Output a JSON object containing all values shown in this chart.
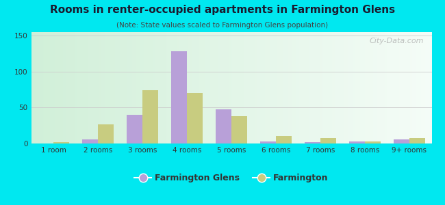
{
  "title": "Rooms in renter-occupied apartments in Farmington Glens",
  "subtitle": "(Note: State values scaled to Farmington Glens population)",
  "categories": [
    "1 room",
    "2 rooms",
    "3 rooms",
    "4 rooms",
    "5 rooms",
    "6 rooms",
    "7 rooms",
    "8 rooms",
    "9+ rooms"
  ],
  "farmington_glens": [
    0,
    6,
    40,
    128,
    47,
    3,
    2,
    3,
    6
  ],
  "farmington": [
    2,
    27,
    74,
    70,
    38,
    10,
    8,
    3,
    8
  ],
  "color_glens": "#b8a0d8",
  "color_farmington": "#c8cc80",
  "background_outer": "#00e8f0",
  "ylim": [
    0,
    155
  ],
  "yticks": [
    0,
    50,
    100,
    150
  ],
  "watermark": "City-Data.com",
  "legend_glens": "Farmington Glens",
  "legend_farmington": "Farmington"
}
